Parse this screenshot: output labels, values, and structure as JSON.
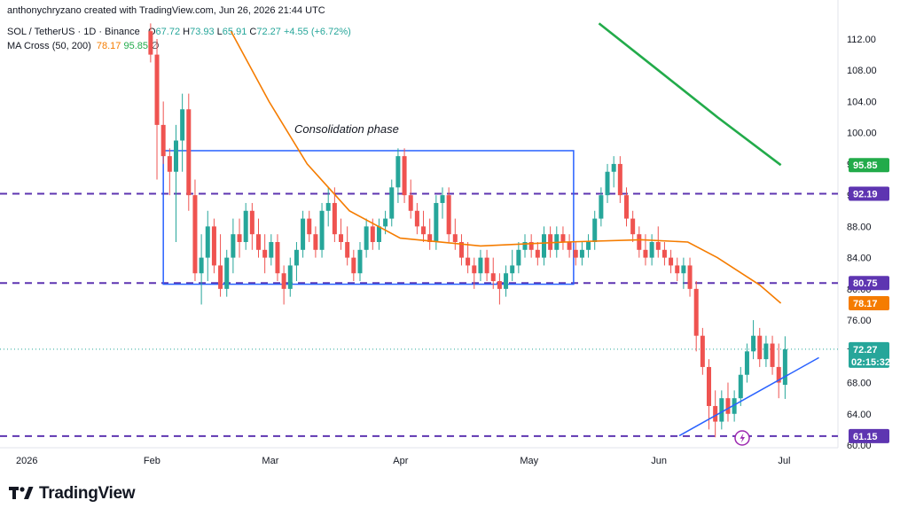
{
  "header": {
    "credit": "anthonychryzano created with TradingView.com, Jun 26, 2026 21:44 UTC",
    "symbol": "SOL / TetherUS · 1D · Binance",
    "ohlc": {
      "o_label": "O",
      "o": "67.72",
      "h_label": "H",
      "h": "73.93",
      "l_label": "L",
      "l": "65.91",
      "c_label": "C",
      "c": "72.27",
      "change": "+4.55 (+6.72%)"
    },
    "ma_label": "MA Cross (50, 200)",
    "ma50": "78.17",
    "ma200": "95.85",
    "ma_suffix": "∅"
  },
  "annotation": "Consolidation phase",
  "price_badges": {
    "ma200": "95.85",
    "level_upper": "92.19",
    "level_mid": "80.75",
    "ma50": "78.17",
    "last": "72.27",
    "countdown": "02:15:32",
    "level_low": "61.15"
  },
  "brand": "TradingView",
  "colors": {
    "up": "#26a69a",
    "down": "#ef5350",
    "ma50": "#f57c00",
    "ma200": "#22ab4a",
    "levels": "#5e35b1",
    "box": "#2962ff",
    "trend": "#2962ff"
  },
  "chart_data": {
    "type": "candlestick",
    "y_ticks": [
      "60.00",
      "64.00",
      "68.00",
      "72.00",
      "76.00",
      "80.00",
      "84.00",
      "88.00",
      "92.00",
      "96.00",
      "100.00",
      "104.00",
      "108.00",
      "112.00"
    ],
    "x_ticks": [
      {
        "label": "2026",
        "date": "2026-01-01"
      },
      {
        "label": "Feb",
        "date": "2026-02-01"
      },
      {
        "label": "Mar",
        "date": "2026-03-01"
      },
      {
        "label": "Apr",
        "date": "2026-04-01"
      },
      {
        "label": "May",
        "date": "2026-05-01"
      },
      {
        "label": "Jun",
        "date": "2026-06-01"
      },
      {
        "label": "Jul",
        "date": "2026-07-01"
      }
    ],
    "horizontal_levels": [
      92.19,
      80.75,
      61.15
    ],
    "consolidation_box": {
      "start": "2026-02-04",
      "end": "2026-05-12",
      "high": 97.7,
      "low": 80.6
    },
    "trendline": {
      "start": [
        "2026-06-06",
        61.2
      ],
      "end": [
        "2026-07-09",
        71.2
      ]
    },
    "last_price": 72.27,
    "first_candle_date": "2026-02-01",
    "candles": [
      [
        113,
        114,
        109,
        110
      ],
      [
        110,
        112,
        94,
        101
      ],
      [
        101,
        104,
        96,
        97
      ],
      [
        97,
        98,
        92,
        95
      ],
      [
        95,
        101,
        86,
        99
      ],
      [
        99,
        105,
        95,
        103
      ],
      [
        103,
        105,
        90,
        92
      ],
      [
        92,
        94,
        81,
        82
      ],
      [
        82,
        87,
        78,
        84
      ],
      [
        84,
        90,
        81,
        88
      ],
      [
        88,
        89,
        82,
        83
      ],
      [
        83,
        87,
        79,
        80
      ],
      [
        80,
        85,
        79,
        84
      ],
      [
        84,
        89,
        82,
        87
      ],
      [
        87,
        89,
        84,
        86
      ],
      [
        86,
        91,
        85,
        90
      ],
      [
        90,
        91,
        85,
        87
      ],
      [
        87,
        89,
        84,
        85
      ],
      [
        85,
        87,
        82,
        84
      ],
      [
        84,
        87,
        83,
        86
      ],
      [
        86,
        87,
        81,
        82
      ],
      [
        82,
        83,
        78,
        80
      ],
      [
        80,
        84,
        79,
        83
      ],
      [
        83,
        86,
        81,
        85
      ],
      [
        85,
        90,
        84,
        89
      ],
      [
        89,
        90,
        86,
        87
      ],
      [
        87,
        88,
        84,
        85
      ],
      [
        85,
        91,
        84,
        90
      ],
      [
        90,
        93,
        88,
        91
      ],
      [
        91,
        93,
        86,
        87
      ],
      [
        87,
        89,
        85,
        86
      ],
      [
        86,
        88,
        83,
        84
      ],
      [
        84,
        85,
        81,
        82
      ],
      [
        82,
        86,
        81,
        85
      ],
      [
        85,
        89,
        84,
        88
      ],
      [
        88,
        89,
        85,
        86
      ],
      [
        86,
        89,
        85,
        88
      ],
      [
        88,
        90,
        87,
        89
      ],
      [
        89,
        94,
        88,
        93
      ],
      [
        93,
        98,
        91,
        97
      ],
      [
        97,
        98,
        91,
        92
      ],
      [
        92,
        94,
        89,
        90
      ],
      [
        90,
        91,
        87,
        88
      ],
      [
        88,
        90,
        86,
        87
      ],
      [
        87,
        89,
        85,
        86
      ],
      [
        86,
        92,
        85,
        91
      ],
      [
        91,
        93,
        89,
        92
      ],
      [
        92,
        93,
        86,
        87
      ],
      [
        87,
        89,
        85,
        86
      ],
      [
        86,
        87,
        83,
        84
      ],
      [
        84,
        86,
        82,
        83
      ],
      [
        83,
        84,
        80,
        82
      ],
      [
        82,
        85,
        81,
        84
      ],
      [
        84,
        85,
        81,
        82
      ],
      [
        82,
        84,
        80,
        81
      ],
      [
        81,
        82,
        78,
        80
      ],
      [
        80,
        83,
        79,
        82
      ],
      [
        82,
        85,
        81,
        83
      ],
      [
        83,
        86,
        82,
        85
      ],
      [
        85,
        87,
        84,
        86
      ],
      [
        86,
        87,
        84,
        85
      ],
      [
        85,
        86,
        83,
        84
      ],
      [
        84,
        88,
        83,
        87
      ],
      [
        87,
        88,
        84,
        85
      ],
      [
        85,
        88,
        84,
        87
      ],
      [
        87,
        88,
        85,
        86
      ],
      [
        86,
        87,
        84,
        85
      ],
      [
        85,
        86,
        83,
        84
      ],
      [
        84,
        86,
        83,
        85
      ],
      [
        85,
        87,
        84,
        86
      ],
      [
        86,
        90,
        85,
        89
      ],
      [
        89,
        93,
        88,
        92
      ],
      [
        92,
        96,
        91,
        95
      ],
      [
        95,
        97,
        93,
        96
      ],
      [
        96,
        97,
        91,
        92
      ],
      [
        92,
        93,
        88,
        89
      ],
      [
        89,
        90,
        86,
        87
      ],
      [
        87,
        88,
        84,
        85
      ],
      [
        85,
        87,
        83,
        84
      ],
      [
        84,
        87,
        83,
        86
      ],
      [
        86,
        88,
        84,
        85
      ],
      [
        85,
        86,
        83,
        84
      ],
      [
        84,
        85,
        82,
        83
      ],
      [
        83,
        84,
        81,
        82
      ],
      [
        82,
        84,
        80,
        83
      ],
      [
        83,
        84,
        79,
        80
      ],
      [
        80,
        81,
        72,
        74
      ],
      [
        74,
        75,
        69,
        70
      ],
      [
        70,
        71,
        62,
        65
      ],
      [
        65,
        67,
        61,
        63
      ],
      [
        63,
        67,
        62,
        66
      ],
      [
        66,
        68,
        63,
        64
      ],
      [
        64,
        67,
        63,
        66
      ],
      [
        66,
        70,
        65,
        69
      ],
      [
        69,
        73,
        68,
        72
      ],
      [
        72,
        76,
        71,
        74
      ],
      [
        74,
        75,
        70,
        71
      ],
      [
        71,
        74,
        70,
        73
      ],
      [
        73,
        74,
        69,
        70
      ],
      [
        70,
        73,
        66,
        68
      ],
      [
        67.72,
        73.93,
        65.91,
        72.27
      ]
    ],
    "ma50": {
      "label": "MA 50",
      "points": [
        [
          "2026-02-20",
          113
        ],
        [
          "2026-03-01",
          104
        ],
        [
          "2026-03-10",
          96
        ],
        [
          "2026-03-20",
          90
        ],
        [
          "2026-04-01",
          86.5
        ],
        [
          "2026-04-20",
          85.5
        ],
        [
          "2026-05-10",
          86
        ],
        [
          "2026-05-28",
          86.3
        ],
        [
          "2026-06-08",
          86
        ],
        [
          "2026-06-15",
          84
        ],
        [
          "2026-06-25",
          80.5
        ],
        [
          "2026-06-30",
          78.17
        ]
      ]
    },
    "ma200": {
      "label": "MA 200",
      "points": [
        [
          "2026-05-18",
          114
        ],
        [
          "2026-06-01",
          108
        ],
        [
          "2026-06-15",
          102
        ],
        [
          "2026-06-30",
          95.85
        ]
      ]
    }
  }
}
